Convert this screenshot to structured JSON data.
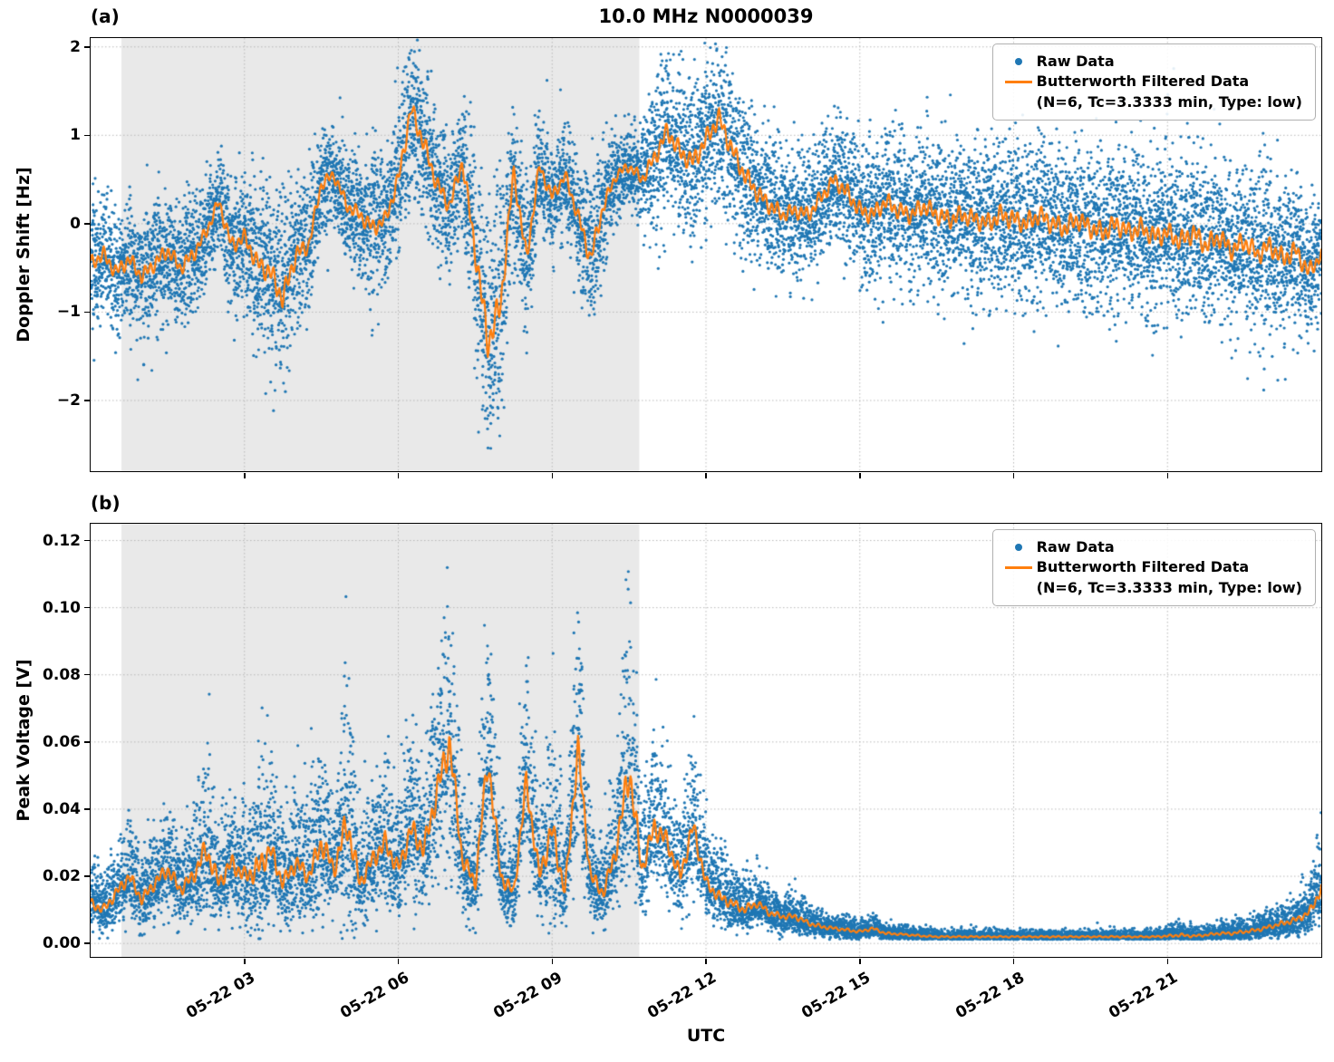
{
  "figure": {
    "panel_a_label": "(a)",
    "panel_b_label": "(b)"
  },
  "colors": {
    "raw": "#1f77b4",
    "filtered": "#ff7f0e",
    "shade": "#e9e9e9",
    "grid": "#b8b8b8",
    "frame": "#000000"
  },
  "legend": {
    "raw_label": "Raw Data",
    "filtered_label": "Butterworth Filtered Data",
    "filtered_params": "(N=6, Tc=3.3333 min, Type: low)"
  },
  "chart_data": [
    {
      "panel": "(a)",
      "type": "scatter+line",
      "title": "10.0 MHz N0000039",
      "ylabel": "Doppler Shift [Hz]",
      "units": "Hz",
      "ylim": [
        -2.8,
        2.1
      ],
      "yticks": [
        -2,
        -1,
        0,
        1,
        2
      ],
      "ytick_labels": [
        "−2",
        "−1",
        "0",
        "1",
        "2"
      ],
      "xlim_hours": [
        0,
        24
      ],
      "xticks_hours": [
        3,
        6,
        9,
        12,
        15,
        18,
        21
      ],
      "shaded_region_hours": [
        0.6,
        10.7
      ],
      "grid": "dotted",
      "legend_position": "upper right",
      "anchor_dt_hours": 0.25,
      "series": [
        {
          "name": "Raw Data",
          "type": "scatter",
          "color": "#1f77b4",
          "marker": "dot"
        },
        {
          "name": "Butterworth Filtered Data (N=6, Tc=3.3333 min, Type: low)",
          "type": "line",
          "color": "#ff7f0e"
        }
      ],
      "filtered_anchor_values": [
        -0.45,
        -0.35,
        -0.55,
        -0.4,
        -0.6,
        -0.45,
        -0.3,
        -0.5,
        -0.35,
        -0.1,
        0.25,
        -0.25,
        -0.15,
        -0.45,
        -0.55,
        -0.85,
        -0.35,
        -0.25,
        0.45,
        0.55,
        0.2,
        0.1,
        -0.05,
        0.05,
        0.5,
        1.3,
        0.9,
        0.45,
        0.2,
        0.7,
        -0.3,
        -1.35,
        -0.9,
        0.6,
        -0.4,
        0.65,
        0.3,
        0.55,
        0.1,
        -0.4,
        0.2,
        0.55,
        0.65,
        0.5,
        0.75,
        1.05,
        0.8,
        0.7,
        0.95,
        1.2,
        0.85,
        0.55,
        0.35,
        0.2,
        0.1,
        0.15,
        0.1,
        0.3,
        0.5,
        0.35,
        0.15,
        0.1,
        0.25,
        0.15,
        0.1,
        0.2,
        0.1,
        0.05,
        0.1,
        0.05,
        0.0,
        0.1,
        0.05,
        0.0,
        0.1,
        0.0,
        -0.05,
        0.05,
        -0.05,
        -0.1,
        0.0,
        -0.1,
        -0.05,
        -0.15,
        -0.1,
        -0.2,
        -0.1,
        -0.25,
        -0.15,
        -0.3,
        -0.2,
        -0.35,
        -0.25,
        -0.4,
        -0.3,
        -0.55,
        -0.35
      ],
      "scatter_spread_values": [
        0.35,
        0.35,
        0.35,
        0.35,
        0.35,
        0.35,
        0.35,
        0.35,
        0.35,
        0.3,
        0.3,
        0.4,
        0.35,
        0.45,
        0.5,
        0.55,
        0.45,
        0.35,
        0.3,
        0.3,
        0.3,
        0.35,
        0.4,
        0.35,
        0.4,
        0.45,
        0.45,
        0.4,
        0.4,
        0.35,
        0.6,
        0.75,
        0.7,
        0.4,
        0.45,
        0.3,
        0.3,
        0.3,
        0.35,
        0.45,
        0.35,
        0.25,
        0.25,
        0.3,
        0.4,
        0.45,
        0.45,
        0.45,
        0.45,
        0.45,
        0.45,
        0.45,
        0.4,
        0.4,
        0.35,
        0.35,
        0.35,
        0.35,
        0.35,
        0.4,
        0.4,
        0.4,
        0.4,
        0.4,
        0.4,
        0.4,
        0.42,
        0.42,
        0.42,
        0.42,
        0.45,
        0.45,
        0.45,
        0.45,
        0.45,
        0.45,
        0.45,
        0.45,
        0.45,
        0.45,
        0.45,
        0.45,
        0.45,
        0.45,
        0.45,
        0.45,
        0.45,
        0.45,
        0.45,
        0.45,
        0.45,
        0.45,
        0.45,
        0.45,
        0.45,
        0.4,
        0.35
      ]
    },
    {
      "panel": "(b)",
      "type": "scatter+line",
      "ylabel": "Peak Voltage [V]",
      "units": "V",
      "xlabel": "UTC",
      "ylim": [
        -0.004,
        0.125
      ],
      "yticks": [
        0,
        0.02,
        0.04,
        0.06,
        0.08,
        0.1,
        0.12
      ],
      "ytick_labels": [
        "0.00",
        "0.02",
        "0.04",
        "0.06",
        "0.08",
        "0.10",
        "0.12"
      ],
      "xlim_hours": [
        0,
        24
      ],
      "xticks_hours": [
        3,
        6,
        9,
        12,
        15,
        18,
        21
      ],
      "xtick_labels": [
        "05-22 03",
        "05-22 06",
        "05-22 09",
        "05-22 12",
        "05-22 15",
        "05-22 18",
        "05-22 21"
      ],
      "shaded_region_hours": [
        0.6,
        10.7
      ],
      "grid": "dotted",
      "legend_position": "upper right",
      "anchor_dt_hours": 0.25,
      "series": [
        {
          "name": "Raw Data",
          "type": "scatter",
          "color": "#1f77b4",
          "marker": "dot"
        },
        {
          "name": "Butterworth Filtered Data (N=6, Tc=3.3333 min, Type: low)",
          "type": "line",
          "color": "#ff7f0e"
        }
      ],
      "filtered_anchor_values": [
        0.012,
        0.01,
        0.015,
        0.02,
        0.013,
        0.018,
        0.022,
        0.016,
        0.02,
        0.028,
        0.018,
        0.024,
        0.02,
        0.022,
        0.028,
        0.018,
        0.024,
        0.02,
        0.03,
        0.022,
        0.036,
        0.018,
        0.025,
        0.03,
        0.022,
        0.034,
        0.028,
        0.045,
        0.06,
        0.025,
        0.018,
        0.055,
        0.02,
        0.015,
        0.048,
        0.02,
        0.034,
        0.015,
        0.058,
        0.02,
        0.015,
        0.028,
        0.052,
        0.022,
        0.035,
        0.03,
        0.02,
        0.035,
        0.018,
        0.014,
        0.012,
        0.01,
        0.012,
        0.009,
        0.008,
        0.008,
        0.006,
        0.005,
        0.0045,
        0.004,
        0.0035,
        0.0045,
        0.003,
        0.0028,
        0.0025,
        0.0022,
        0.002,
        0.002,
        0.002,
        0.002,
        0.002,
        0.002,
        0.002,
        0.002,
        0.002,
        0.002,
        0.002,
        0.002,
        0.002,
        0.002,
        0.002,
        0.002,
        0.002,
        0.002,
        0.0022,
        0.0025,
        0.0022,
        0.0025,
        0.003,
        0.003,
        0.0035,
        0.004,
        0.005,
        0.006,
        0.007,
        0.009,
        0.016
      ],
      "scatter_spread_values": [
        0.006,
        0.006,
        0.007,
        0.008,
        0.007,
        0.008,
        0.009,
        0.008,
        0.009,
        0.015,
        0.009,
        0.011,
        0.01,
        0.016,
        0.013,
        0.009,
        0.011,
        0.01,
        0.015,
        0.01,
        0.022,
        0.009,
        0.011,
        0.013,
        0.01,
        0.015,
        0.013,
        0.018,
        0.022,
        0.011,
        0.009,
        0.02,
        0.01,
        0.008,
        0.018,
        0.01,
        0.02,
        0.008,
        0.022,
        0.009,
        0.008,
        0.012,
        0.026,
        0.01,
        0.014,
        0.012,
        0.009,
        0.013,
        0.008,
        0.007,
        0.006,
        0.005,
        0.005,
        0.004,
        0.0035,
        0.0035,
        0.003,
        0.0025,
        0.002,
        0.002,
        0.0018,
        0.002,
        0.0015,
        0.0013,
        0.0012,
        0.0012,
        0.001,
        0.001,
        0.001,
        0.001,
        0.001,
        0.001,
        0.001,
        0.001,
        0.001,
        0.001,
        0.001,
        0.001,
        0.001,
        0.001,
        0.001,
        0.001,
        0.001,
        0.001,
        0.0015,
        0.002,
        0.0015,
        0.0015,
        0.0018,
        0.0018,
        0.002,
        0.0022,
        0.0025,
        0.003,
        0.0035,
        0.004,
        0.008
      ]
    }
  ]
}
